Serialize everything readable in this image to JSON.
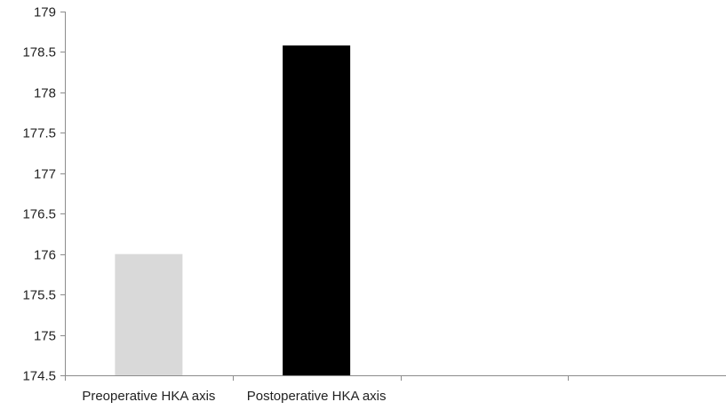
{
  "chart_data": {
    "type": "bar",
    "title": "",
    "xlabel": "",
    "ylabel": "",
    "categories": [
      "Preoperative HKA axis",
      "Postoperative HKA axis",
      "",
      ""
    ],
    "series": [
      {
        "values": [
          176.0,
          178.58,
          null,
          null
        ]
      }
    ],
    "bar_colors": [
      "#d9d9d9",
      "#000000"
    ],
    "ylim": [
      174.5,
      179
    ],
    "yticks": [
      "174.5",
      "175",
      "175.5",
      "176",
      "176.5",
      "177",
      "177.5",
      "178",
      "178.5",
      "179"
    ],
    "grid": false,
    "legend": "none"
  }
}
